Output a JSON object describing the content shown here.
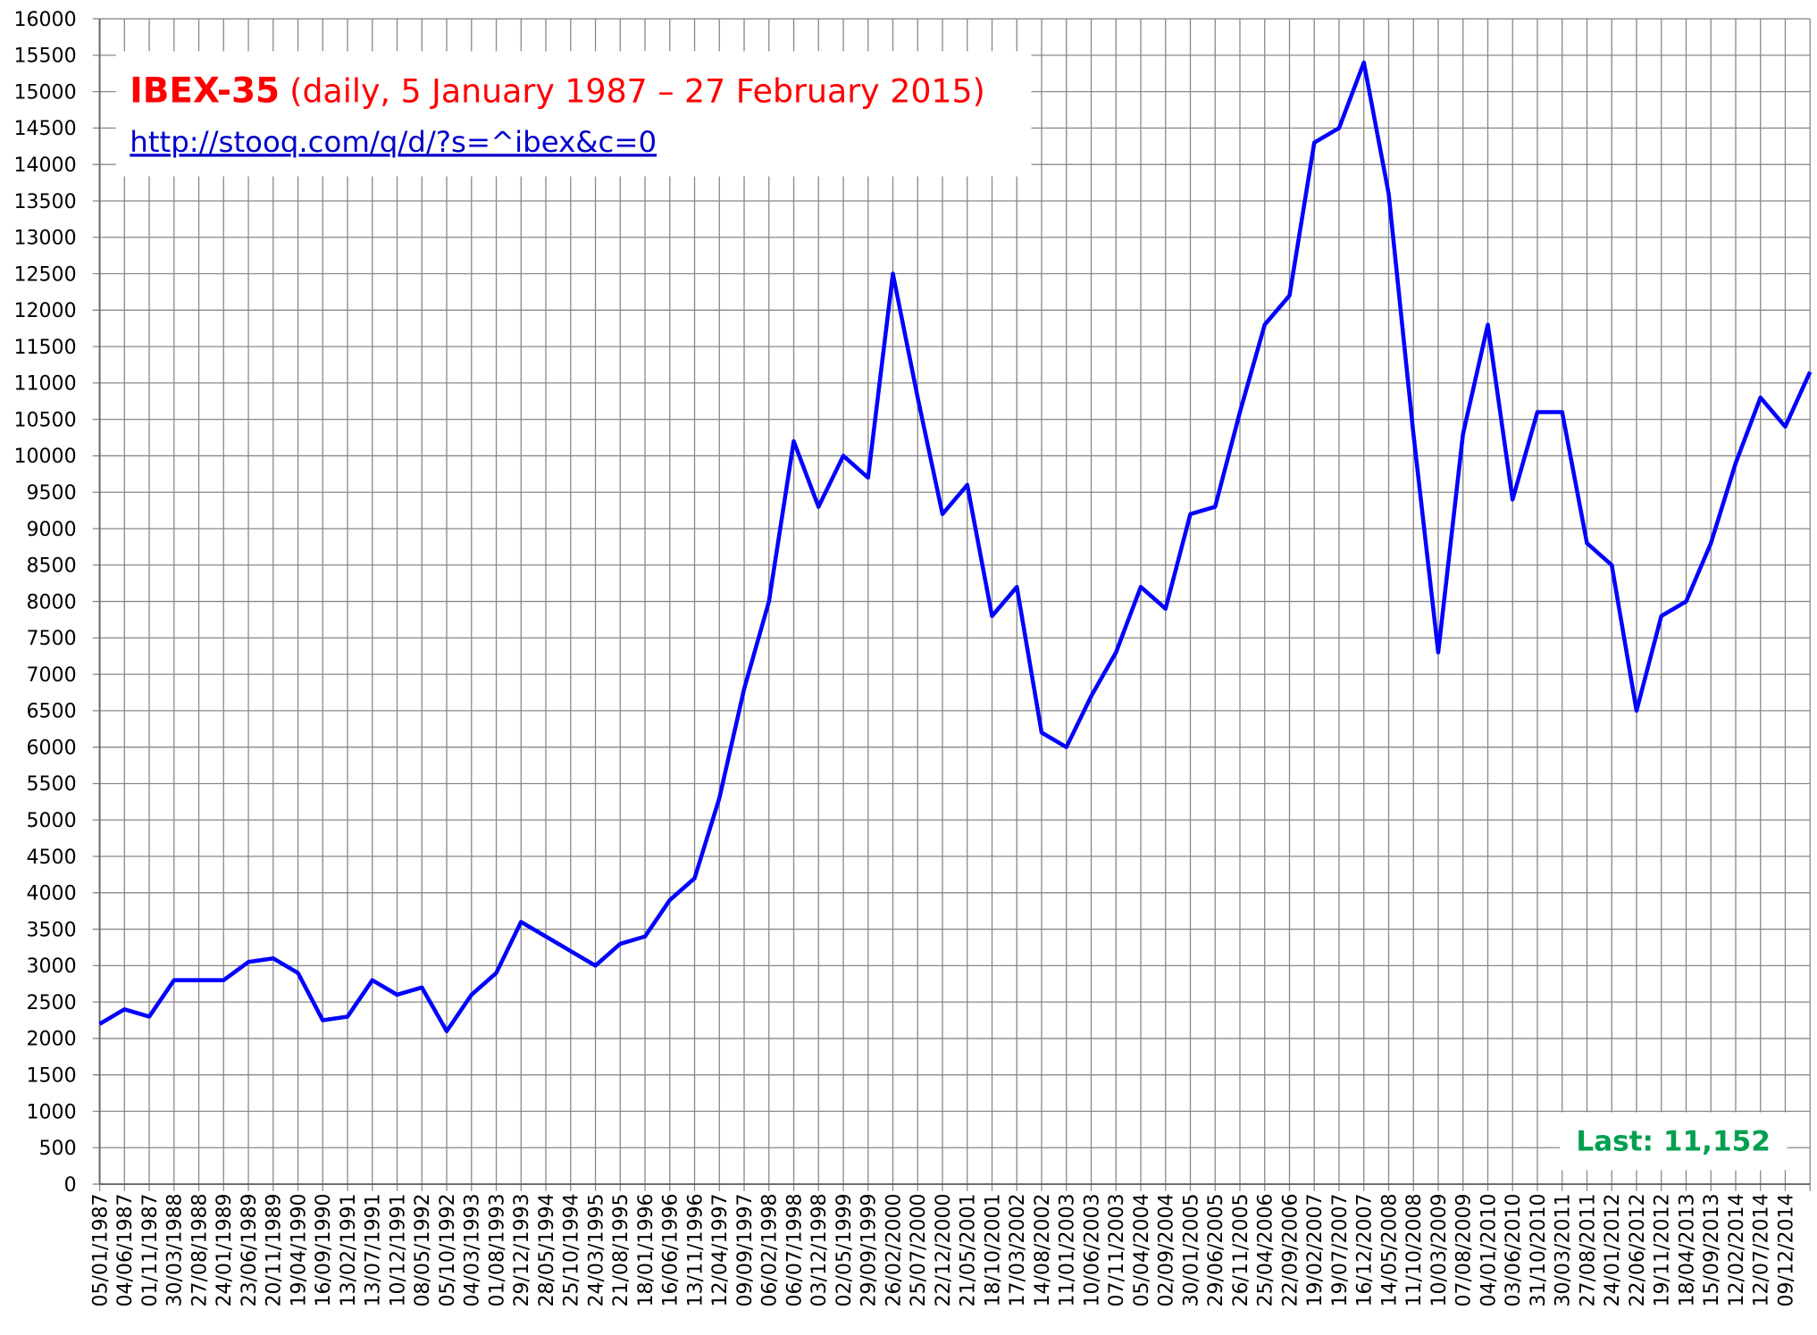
{
  "chart_data": {
    "type": "line",
    "title": "IBEX-35",
    "subtitle": "(daily, 5 January 1987 – 27 February 2015)",
    "source": "http://stooq.com/q/d/?s=^ibex&c=0",
    "annotation": "Last: 11,152",
    "categories": [
      "05/01/1987",
      "04/06/1987",
      "01/11/1987",
      "30/03/1988",
      "27/08/1988",
      "24/01/1989",
      "23/06/1989",
      "20/11/1989",
      "19/04/1990",
      "16/09/1990",
      "13/02/1991",
      "13/07/1991",
      "10/12/1991",
      "08/05/1992",
      "05/10/1992",
      "04/03/1993",
      "01/08/1993",
      "29/12/1993",
      "28/05/1994",
      "25/10/1994",
      "24/03/1995",
      "21/08/1995",
      "18/01/1996",
      "16/06/1996",
      "13/11/1996",
      "12/04/1997",
      "09/09/1997",
      "06/02/1998",
      "06/07/1998",
      "03/12/1998",
      "02/05/1999",
      "29/09/1999",
      "26/02/2000",
      "25/07/2000",
      "22/12/2000",
      "21/05/2001",
      "18/10/2001",
      "17/03/2002",
      "14/08/2002",
      "11/01/2003",
      "10/06/2003",
      "07/11/2003",
      "05/04/2004",
      "02/09/2004",
      "30/01/2005",
      "29/06/2005",
      "26/11/2005",
      "25/04/2006",
      "22/09/2006",
      "19/02/2007",
      "19/07/2007",
      "16/12/2007",
      "14/05/2008",
      "11/10/2008",
      "10/03/2009",
      "07/08/2009",
      "04/01/2010",
      "03/06/2010",
      "31/10/2010",
      "30/03/2011",
      "27/08/2011",
      "24/01/2012",
      "22/06/2012",
      "19/11/2012",
      "18/04/2013",
      "15/09/2013",
      "12/02/2014",
      "12/07/2014",
      "09/12/2014",
      null
    ],
    "series": [
      {
        "name": "IBEX-35",
        "color": "#0000ff",
        "values": [
          2200,
          2400,
          2300,
          2800,
          2800,
          2800,
          3050,
          3100,
          2900,
          2250,
          2300,
          2800,
          2600,
          2700,
          2100,
          2600,
          2900,
          3600,
          3400,
          3200,
          3000,
          3300,
          3400,
          3900,
          4200,
          5300,
          6800,
          8000,
          10200,
          9300,
          10000,
          9700,
          12500,
          10800,
          9200,
          9600,
          7800,
          8200,
          6200,
          6000,
          6700,
          7300,
          8200,
          7900,
          9200,
          9300,
          10600,
          11800,
          12200,
          14300,
          14500,
          15400,
          13600,
          10300,
          7300,
          10300,
          11800,
          9400,
          10600,
          10600,
          8800,
          8500,
          6500,
          7800,
          8000,
          8800,
          9900,
          10800,
          10400,
          11152
        ]
      }
    ],
    "ylim": [
      0,
      16000
    ],
    "yticks": [
      0,
      500,
      1000,
      1500,
      2000,
      2500,
      3000,
      3500,
      4000,
      4500,
      5000,
      5500,
      6000,
      6500,
      7000,
      7500,
      8000,
      8500,
      9000,
      9500,
      10000,
      10500,
      11000,
      11500,
      12000,
      12500,
      13000,
      13500,
      14000,
      14500,
      15000,
      15500,
      16000
    ],
    "grid": true
  }
}
